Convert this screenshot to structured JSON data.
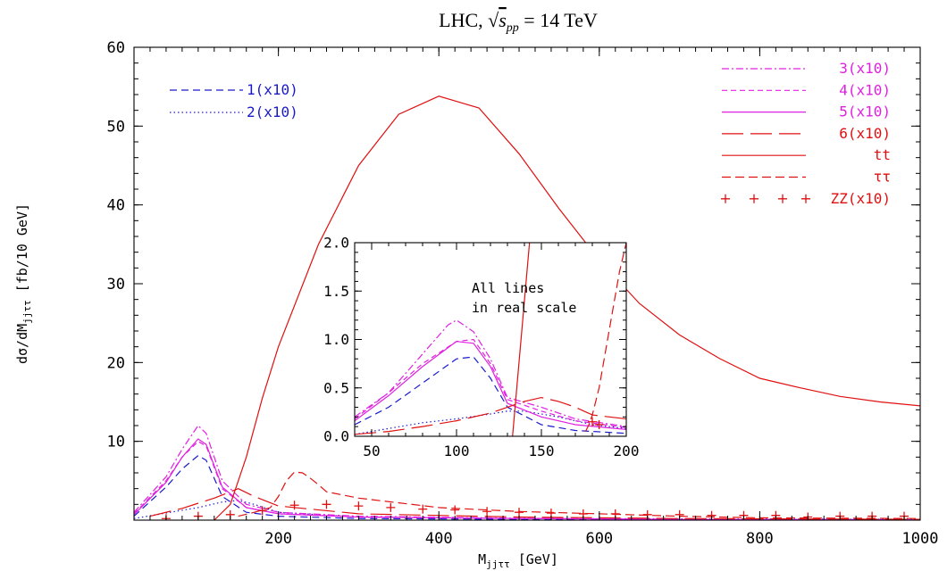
{
  "chart_data": {
    "type": "line",
    "title": "LHC, √s_pp = 14 TeV",
    "title_parts": {
      "prefix": "LHC, ",
      "sqrt_arg": "s",
      "sqrt_sub": "pp",
      "suffix": " = 14 TeV"
    },
    "xlabel": "M_jjττ [GeV]",
    "xlabel_parts": {
      "main": "M",
      "sub": "jjττ",
      "unit": " [GeV]"
    },
    "ylabel": "dσ/dM_jjττ [fb/10 GeV]",
    "ylabel_parts": {
      "main": "dσ/dM",
      "sub": "jjττ",
      "unit": " [fb/10 GeV]"
    },
    "xlim": [
      20,
      1000
    ],
    "ylim": [
      0,
      60
    ],
    "x_ticks": [
      "200",
      "400",
      "600",
      "800",
      "1000"
    ],
    "x_tick_values": [
      200,
      400,
      600,
      800,
      1000
    ],
    "y_ticks": [
      "10",
      "20",
      "30",
      "40",
      "50",
      "60"
    ],
    "y_tick_values": [
      10,
      20,
      30,
      40,
      50,
      60
    ],
    "grid": false,
    "series": [
      {
        "name": "1(x10)",
        "color": "#1a1acc",
        "dash": "8,5",
        "x": [
          20,
          60,
          80,
          100,
          110,
          130,
          160,
          200,
          300,
          500,
          700,
          1000
        ],
        "y": [
          0.5,
          4.2,
          6.5,
          8.2,
          7.6,
          3.0,
          1.0,
          0.5,
          0.2,
          0.1,
          0.05,
          0.02
        ]
      },
      {
        "name": "2(x10)",
        "color": "#1a1acc",
        "dash": "1.5,3",
        "x": [
          20,
          60,
          100,
          130,
          150,
          170,
          200,
          300,
          500,
          1000
        ],
        "y": [
          0.2,
          0.9,
          1.6,
          2.3,
          2.5,
          2.0,
          1.0,
          0.4,
          0.2,
          0.1
        ]
      },
      {
        "name": "3(x10)",
        "color": "#e020e0",
        "dash": "8,3,2,3",
        "x": [
          20,
          60,
          80,
          100,
          110,
          130,
          160,
          200,
          300,
          500,
          700,
          1000
        ],
        "y": [
          1.0,
          5.5,
          9.0,
          12.0,
          11.0,
          5.0,
          2.0,
          1.0,
          0.5,
          0.25,
          0.1,
          0.05
        ]
      },
      {
        "name": "4(x10)",
        "color": "#e020e0",
        "dash": "6,4",
        "x": [
          20,
          60,
          80,
          100,
          110,
          130,
          160,
          200,
          300,
          500,
          700,
          1000
        ],
        "y": [
          0.8,
          5.0,
          8.0,
          10.0,
          9.4,
          4.0,
          1.6,
          0.8,
          0.4,
          0.2,
          0.1,
          0.04
        ]
      },
      {
        "name": "5(x10)",
        "color": "#e020e0",
        "dash": "",
        "x": [
          20,
          60,
          80,
          100,
          110,
          130,
          160,
          200,
          300,
          500,
          700,
          1000
        ],
        "y": [
          0.7,
          4.8,
          8.0,
          10.3,
          9.6,
          4.2,
          1.6,
          0.8,
          0.4,
          0.2,
          0.1,
          0.04
        ]
      },
      {
        "name": "6(x10)",
        "color": "#e01010",
        "dash": "24,8",
        "x": [
          40,
          80,
          120,
          150,
          170,
          200,
          300,
          500,
          700,
          1000
        ],
        "y": [
          0.5,
          1.5,
          2.8,
          4.0,
          3.0,
          1.8,
          0.8,
          0.4,
          0.2,
          0.1
        ]
      },
      {
        "name": "tt",
        "color": "#e01010",
        "dash": "",
        "x": [
          120,
          140,
          160,
          180,
          200,
          250,
          300,
          350,
          400,
          450,
          500,
          550,
          600,
          650,
          700,
          750,
          800,
          850,
          900,
          950,
          1000
        ],
        "y": [
          0,
          2.0,
          8.0,
          15.5,
          22.0,
          35.0,
          45.0,
          51.5,
          53.8,
          52.3,
          46.5,
          39.5,
          33.0,
          27.5,
          23.5,
          20.5,
          18.0,
          16.8,
          15.7,
          15.0,
          14.5
        ]
      },
      {
        "name": "ττ",
        "color": "#e01010",
        "dash": "10,5",
        "x": [
          150,
          170,
          190,
          200,
          210,
          220,
          230,
          240,
          250,
          260,
          300,
          400,
          500,
          600,
          700,
          800,
          1000
        ],
        "y": [
          0.5,
          1.0,
          1.6,
          3.0,
          5.0,
          6.1,
          6.0,
          5.3,
          4.5,
          3.6,
          2.8,
          1.6,
          1.1,
          0.8,
          0.5,
          0.3,
          0.2
        ]
      }
    ],
    "markers": {
      "name": "ZZ(x10)",
      "color": "#e01010",
      "x": [
        60,
        100,
        140,
        180,
        220,
        260,
        300,
        340,
        380,
        420,
        460,
        500,
        540,
        580,
        620,
        660,
        700,
        740,
        780,
        820,
        860,
        900,
        940,
        980
      ],
      "y": [
        0.2,
        0.5,
        0.7,
        1.2,
        1.9,
        2.0,
        1.8,
        1.6,
        1.4,
        1.3,
        1.1,
        1.0,
        0.9,
        0.8,
        0.8,
        0.7,
        0.7,
        0.6,
        0.6,
        0.6,
        0.4,
        0.5,
        0.5,
        0.5
      ]
    },
    "legend_position": "top-left and top-right",
    "inset": {
      "xlim": [
        40,
        200
      ],
      "ylim": [
        0,
        2
      ],
      "x_ticks": [
        "50",
        "100",
        "150",
        "200"
      ],
      "x_tick_values": [
        50,
        100,
        150,
        200
      ],
      "y_ticks": [
        "0.0",
        "0.5",
        "1.0",
        "1.5",
        "2.0"
      ],
      "y_tick_values": [
        0,
        0.5,
        1.0,
        1.5,
        2.0
      ],
      "annotation_lines": [
        "All lines",
        "in real scale"
      ],
      "series": [
        {
          "name": "1",
          "color": "#1a1acc",
          "dash": "8,5",
          "x": [
            40,
            60,
            80,
            100,
            110,
            120,
            130,
            150,
            170,
            200
          ],
          "y": [
            0.12,
            0.3,
            0.55,
            0.8,
            0.82,
            0.6,
            0.3,
            0.12,
            0.06,
            0.03
          ]
        },
        {
          "name": "2",
          "color": "#1a1acc",
          "dash": "1.5,3",
          "x": [
            40,
            60,
            80,
            100,
            120,
            130,
            140,
            160,
            180,
            200
          ],
          "y": [
            0.02,
            0.08,
            0.14,
            0.18,
            0.23,
            0.26,
            0.26,
            0.2,
            0.12,
            0.08
          ]
        },
        {
          "name": "3",
          "color": "#e020e0",
          "dash": "8,3,2,3",
          "x": [
            40,
            60,
            80,
            95,
            100,
            110,
            120,
            130,
            150,
            170,
            200
          ],
          "y": [
            0.2,
            0.45,
            0.85,
            1.15,
            1.2,
            1.08,
            0.8,
            0.4,
            0.3,
            0.18,
            0.1
          ]
        },
        {
          "name": "4",
          "color": "#e020e0",
          "dash": "6,4",
          "x": [
            40,
            60,
            80,
            100,
            110,
            120,
            130,
            150,
            170,
            200
          ],
          "y": [
            0.18,
            0.45,
            0.75,
            0.98,
            1.0,
            0.75,
            0.38,
            0.26,
            0.16,
            0.09
          ]
        },
        {
          "name": "5",
          "color": "#e020e0",
          "dash": "",
          "x": [
            40,
            60,
            80,
            100,
            110,
            120,
            130,
            150,
            170,
            200
          ],
          "y": [
            0.16,
            0.42,
            0.72,
            0.98,
            0.96,
            0.72,
            0.34,
            0.2,
            0.12,
            0.07
          ]
        },
        {
          "name": "6",
          "color": "#e01010",
          "dash": "24,8",
          "x": [
            40,
            60,
            80,
            100,
            120,
            140,
            150,
            160,
            170,
            180,
            200
          ],
          "y": [
            0.02,
            0.05,
            0.1,
            0.16,
            0.24,
            0.36,
            0.4,
            0.36,
            0.3,
            0.22,
            0.18
          ]
        },
        {
          "name": "tt",
          "color": "#e01010",
          "dash": "",
          "x": [
            133,
            138,
            143
          ],
          "y": [
            0,
            1.0,
            2.0
          ]
        },
        {
          "name": "ττ",
          "color": "#e01010",
          "dash": "10,5",
          "x": [
            176,
            178,
            180,
            184,
            188,
            192,
            196,
            200
          ],
          "y": [
            0.05,
            0.12,
            0.22,
            0.5,
            0.9,
            1.3,
            1.7,
            2.0
          ]
        }
      ],
      "markers": {
        "x": [
          180,
          184
        ],
        "y": [
          0.15,
          0.12
        ]
      }
    }
  }
}
